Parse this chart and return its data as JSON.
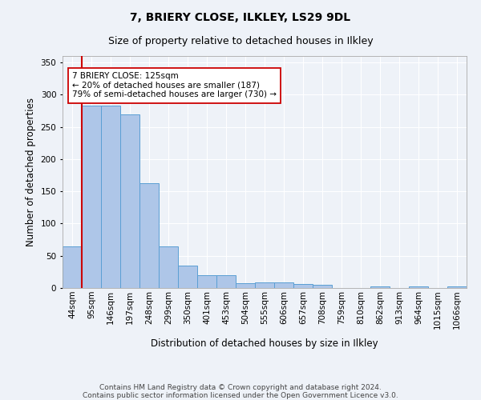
{
  "title": "7, BRIERY CLOSE, ILKLEY, LS29 9DL",
  "subtitle": "Size of property relative to detached houses in Ilkley",
  "xlabel": "Distribution of detached houses by size in Ilkley",
  "ylabel": "Number of detached properties",
  "categories": [
    "44sqm",
    "95sqm",
    "146sqm",
    "197sqm",
    "248sqm",
    "299sqm",
    "350sqm",
    "401sqm",
    "453sqm",
    "504sqm",
    "555sqm",
    "606sqm",
    "657sqm",
    "708sqm",
    "759sqm",
    "810sqm",
    "862sqm",
    "913sqm",
    "964sqm",
    "1015sqm",
    "1066sqm"
  ],
  "values": [
    65,
    283,
    283,
    270,
    163,
    65,
    35,
    20,
    20,
    8,
    9,
    9,
    6,
    5,
    0,
    0,
    3,
    0,
    3,
    0,
    3
  ],
  "bar_color": "#aec6e8",
  "bar_edge_color": "#5a9fd4",
  "property_bin_index": 1,
  "vline_x": 0.5,
  "vline_color": "#cc0000",
  "annotation_text": "7 BRIERY CLOSE: 125sqm\n← 20% of detached houses are smaller (187)\n79% of semi-detached houses are larger (730) →",
  "annotation_box_color": "#ffffff",
  "annotation_box_edge_color": "#cc0000",
  "background_color": "#eef2f8",
  "plot_background": "#eef2f8",
  "grid_color": "#ffffff",
  "ylim": [
    0,
    360
  ],
  "yticks": [
    0,
    50,
    100,
    150,
    200,
    250,
    300,
    350
  ],
  "footer_text": "Contains HM Land Registry data © Crown copyright and database right 2024.\nContains public sector information licensed under the Open Government Licence v3.0.",
  "title_fontsize": 10,
  "subtitle_fontsize": 9,
  "tick_fontsize": 7.5,
  "label_fontsize": 8.5,
  "footer_fontsize": 6.5
}
